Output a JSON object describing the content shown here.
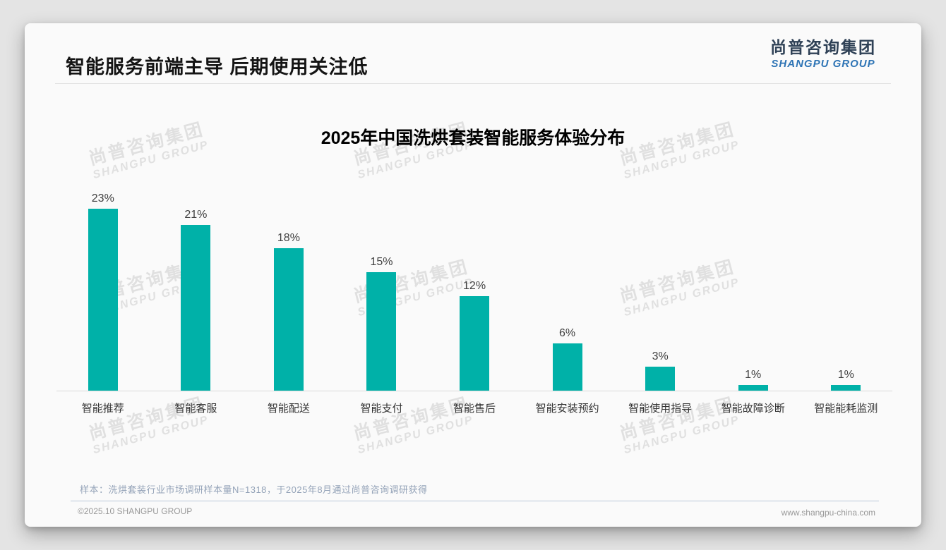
{
  "header": {
    "title": "智能服务前端主导 后期使用关注低"
  },
  "logo": {
    "cn": "尚普咨询集团",
    "en": "SHANGPU GROUP"
  },
  "watermark": {
    "cn": "尚普咨询集团",
    "en": "SHANGPU GROUP"
  },
  "note": "样本：洗烘套装行业市场调研样本量N=1318，于2025年8月通过尚普咨询调研获得",
  "footer": {
    "left": "©2025.10 SHANGPU GROUP",
    "right": "www.shangpu-china.com"
  },
  "chart_data": {
    "type": "bar",
    "title": "2025年中国洗烘套装智能服务体验分布",
    "categories": [
      "智能推荐",
      "智能客服",
      "智能配送",
      "智能支付",
      "智能售后",
      "智能安装预约",
      "智能使用指导",
      "智能故障诊断",
      "智能能耗监测"
    ],
    "values": [
      23,
      21,
      18,
      15,
      12,
      6,
      3,
      1,
      1
    ],
    "value_labels": [
      "23%",
      "21%",
      "18%",
      "15%",
      "12%",
      "6%",
      "3%",
      "1%",
      "1%"
    ],
    "unit": "%",
    "xlabel": "",
    "ylabel": "",
    "ylim": [
      0,
      25
    ],
    "grid": false,
    "legend": false,
    "bar_color": "#00b1a8",
    "axis_line_color": "#d9d9d9"
  }
}
